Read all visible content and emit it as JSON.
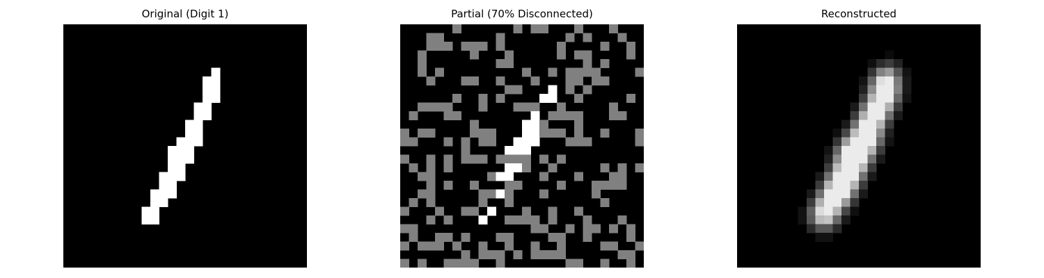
{
  "figure": {
    "panels": [
      {
        "key": "original",
        "title": "Original (Digit 1)",
        "image_kind": "binary digit",
        "grid_size": 28,
        "colormap": "gray"
      },
      {
        "key": "partial",
        "title": "Partial (70% Disconnected)",
        "image_kind": "masked digit with disconnected pixels shown gray",
        "grid_size": 28,
        "colormap": "gray",
        "disconnected_fraction": 0.7,
        "disconnected_color": "#808080"
      },
      {
        "key": "reconstructed",
        "title": "Reconstructed",
        "image_kind": "blurred reconstruction of digit",
        "grid_size": 28,
        "colormap": "gray"
      }
    ]
  }
}
